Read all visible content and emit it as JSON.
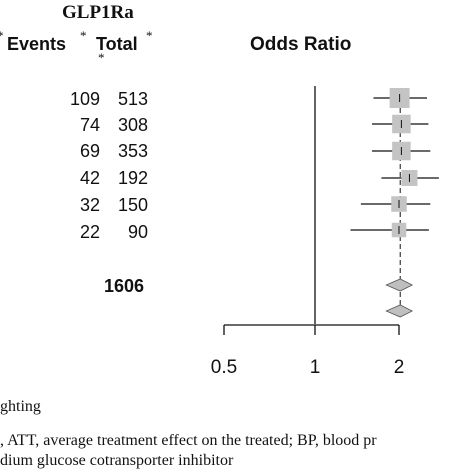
{
  "header": {
    "group_title": "GLP1Ra",
    "events_label": "Events",
    "total_label": "Total",
    "star": "*",
    "odds_ratio_label": "Odds Ratio"
  },
  "rows": [
    {
      "events": "109",
      "total": "513"
    },
    {
      "events": "74",
      "total": "308"
    },
    {
      "events": "69",
      "total": "353"
    },
    {
      "events": "42",
      "total": "192"
    },
    {
      "events": "32",
      "total": "150"
    },
    {
      "events": "22",
      "total": "90"
    }
  ],
  "summary": {
    "total_events": "1606"
  },
  "footnotes": {
    "line1": "ghting",
    "line2": ", ATT, average treatment effect on the treated; BP, blood pr",
    "line3": "dium glucose cotransporter inhibitor"
  },
  "colors": {
    "box": "#c4c4c4",
    "diamond": "#bfbfbf",
    "line": "#111111"
  },
  "chart_data": {
    "type": "forest",
    "scale": "log",
    "xlabel": "Odds Ratio",
    "xlim": [
      0.5,
      2.5
    ],
    "x_ticks": [
      0.5,
      1,
      2
    ],
    "x_tick_labels": [
      "0.5",
      "1",
      "2"
    ],
    "reference_line": 1,
    "studies": [
      {
        "events": 109,
        "total": 513,
        "or": 2.01,
        "ci": [
          1.62,
          2.52
        ],
        "weight": 1.0
      },
      {
        "events": 74,
        "total": 308,
        "or": 2.04,
        "ci": [
          1.6,
          2.55
        ],
        "weight": 0.85
      },
      {
        "events": 69,
        "total": 353,
        "or": 2.04,
        "ci": [
          1.6,
          2.59
        ],
        "weight": 0.85
      },
      {
        "events": 42,
        "total": 192,
        "or": 2.18,
        "ci": [
          1.73,
          2.78
        ],
        "weight": 0.6
      },
      {
        "events": 32,
        "total": 150,
        "or": 2.0,
        "ci": [
          1.46,
          2.59
        ],
        "weight": 0.55
      },
      {
        "events": 22,
        "total": 90,
        "or": 2.0,
        "ci": [
          1.34,
          2.56
        ],
        "weight": 0.45
      }
    ],
    "pooled": [
      {
        "events": 1606,
        "or": 2.02,
        "ci": [
          1.8,
          2.23
        ]
      },
      {
        "or": 2.02,
        "ci": [
          1.8,
          2.23
        ]
      }
    ]
  }
}
